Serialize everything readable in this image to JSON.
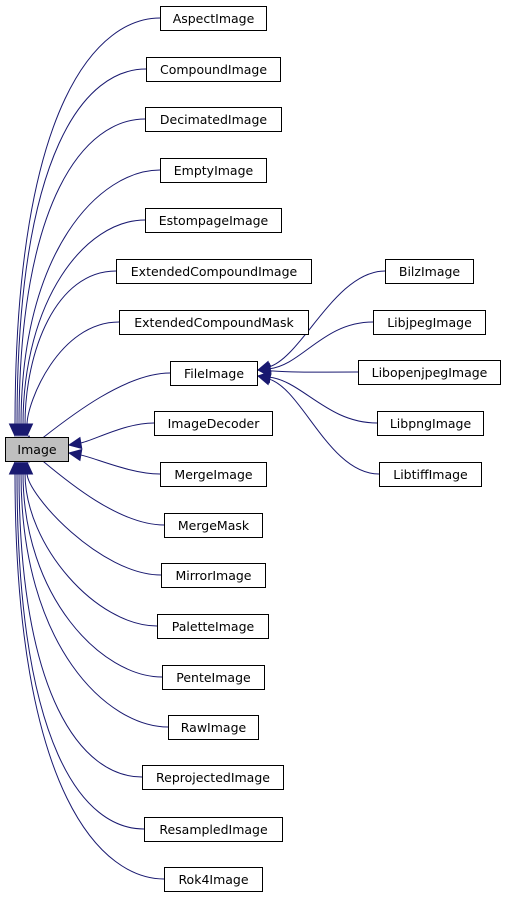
{
  "diagram": {
    "root": "Image",
    "children": [
      {
        "label": "AspectImage"
      },
      {
        "label": "CompoundImage"
      },
      {
        "label": "DecimatedImage"
      },
      {
        "label": "EmptyImage"
      },
      {
        "label": "EstompageImage"
      },
      {
        "label": "ExtendedCompoundImage"
      },
      {
        "label": "ExtendedCompoundMask"
      },
      {
        "label": "FileImage",
        "children": [
          {
            "label": "BilzImage"
          },
          {
            "label": "LibjpegImage"
          },
          {
            "label": "LibopenjpegImage"
          },
          {
            "label": "LibpngImage"
          },
          {
            "label": "LibtiffImage"
          }
        ]
      },
      {
        "label": "ImageDecoder"
      },
      {
        "label": "MergeImage"
      },
      {
        "label": "MergeMask"
      },
      {
        "label": "MirrorImage"
      },
      {
        "label": "PaletteImage"
      },
      {
        "label": "PenteImage"
      },
      {
        "label": "RawImage"
      },
      {
        "label": "ReprojectedImage"
      },
      {
        "label": "ResampledImage"
      },
      {
        "label": "Rok4Image"
      }
    ],
    "colors": {
      "edge": "#191970",
      "root_fill": "#bfbfbf",
      "node_fill": "#ffffff",
      "node_border": "#000000"
    }
  }
}
